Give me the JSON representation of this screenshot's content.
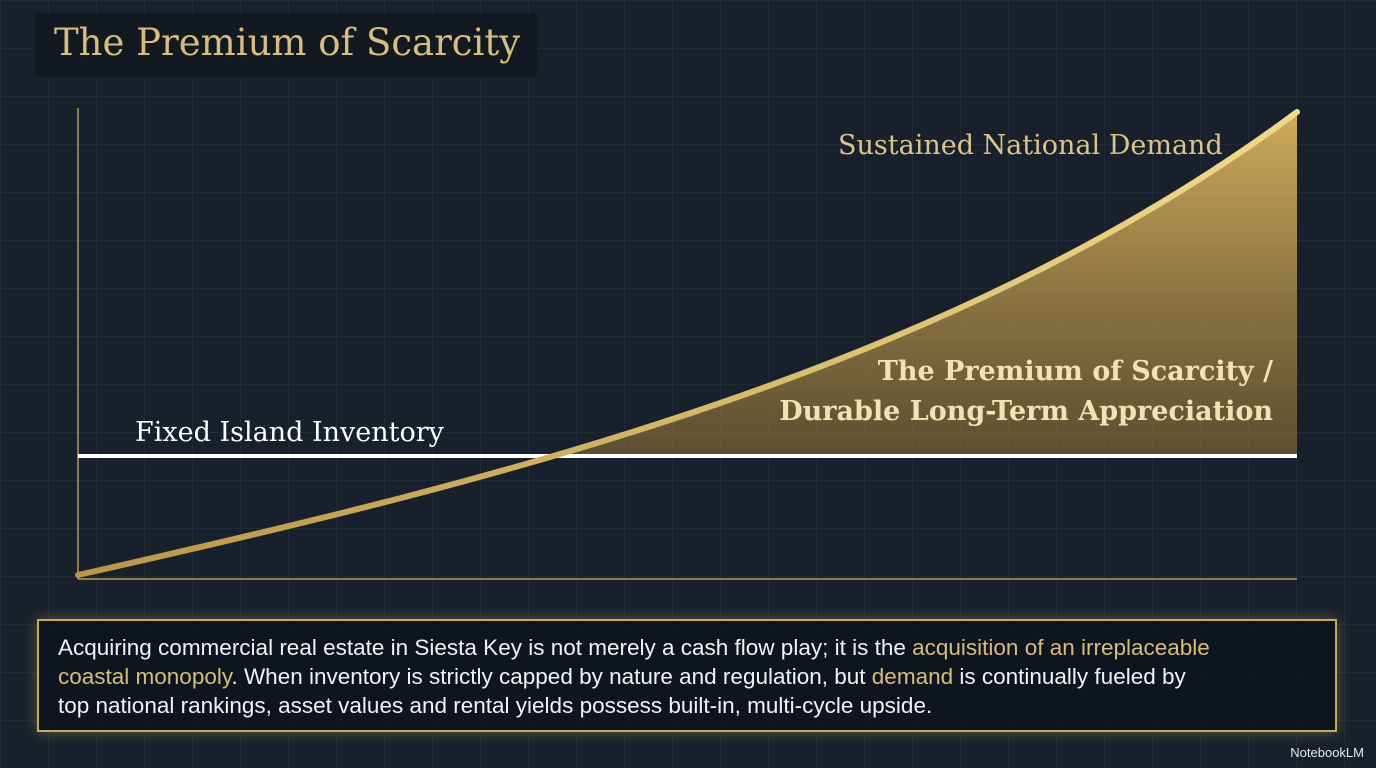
{
  "header": {
    "title": "The Premium of Scarcity"
  },
  "diagram": {
    "demand_label": "Sustained National Demand",
    "premium_label": [
      "The Premium of Scarcity /",
      "Durable Long-Term Appreciation"
    ],
    "inventory_label": "Fixed Island Inventory"
  },
  "body": {
    "lines": [
      [
        {
          "text": "Acquiring commercial real estate in Siesta Key is not merely a cash flow play; it is the ",
          "highlight": false
        },
        {
          "text": "acquisition of an irreplaceable",
          "highlight": true
        }
      ],
      [
        {
          "text": "coastal monopoly",
          "highlight": true
        },
        {
          "text": ". When inventory is strictly capped by nature and regulation, but ",
          "highlight": false
        },
        {
          "text": "demand",
          "highlight": true
        },
        {
          "text": " is continually fueled by",
          "highlight": false
        }
      ],
      [
        {
          "text": "top national rankings, asset values and rental yields possess built-in, multi-cycle upside.",
          "highlight": false
        }
      ]
    ]
  },
  "footer": {
    "brand": "NotebookLM"
  }
}
